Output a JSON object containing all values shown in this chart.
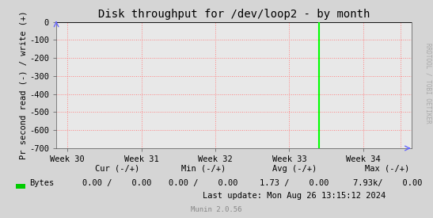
{
  "title": "Disk throughput for /dev/loop2 - by month",
  "ylabel": "Pr second read (-) / write (+)",
  "x_tick_labels": [
    "Week 30",
    "Week 31",
    "Week 32",
    "Week 33",
    "Week 34"
  ],
  "x_tick_positions": [
    0,
    1,
    2,
    3,
    4
  ],
  "ylim": [
    -700,
    0
  ],
  "yticks": [
    0,
    -100,
    -200,
    -300,
    -400,
    -500,
    -600,
    -700
  ],
  "bg_color": "#d5d5d5",
  "plot_bg_color": "#e8e8e8",
  "grid_color": "#ff8080",
  "grid_line_style": ":",
  "zero_line_color": "#000000",
  "green_line_x": 3.4,
  "green_line_color": "#00ff00",
  "side_text": "RRDTOOL / TOBI OETIKER",
  "legend_label": "Bytes",
  "legend_color": "#00cc00",
  "footer_cur_label": "Cur (-/+)",
  "footer_cur_val": "0.00 /    0.00",
  "footer_min_label": "Min (-/+)",
  "footer_min_val": "0.00 /    0.00",
  "footer_avg_label": "Avg (-/+)",
  "footer_avg_val": "1.73 /    0.00",
  "footer_max_label": "Max (-/+)",
  "footer_max_val": "7.93k/    0.00",
  "footer_lastupdate": "Last update: Mon Aug 26 13:15:12 2024",
  "munin_version": "Munin 2.0.56",
  "arrow_color": "#6666ff"
}
